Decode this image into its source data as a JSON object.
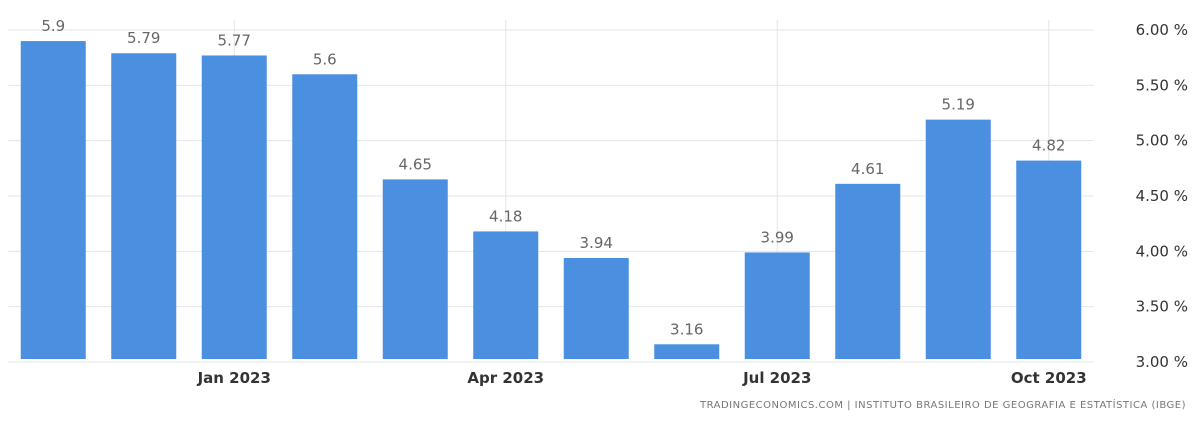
{
  "source_text": "TRADINGECONOMICS.COM | INSTITUTO BRASILEIRO DE GEOGRAFIA E ESTATÍSTICA (IBGE)",
  "colors": {
    "bar": "#4a8fe0",
    "grid": "#e2e6ea",
    "label": "#666666"
  },
  "chart_data": {
    "type": "bar",
    "categories": [
      "2022-11",
      "2022-12",
      "2023-01",
      "2023-02",
      "2023-03",
      "2023-04",
      "2023-05",
      "2023-06",
      "2023-07",
      "2023-08",
      "2023-09",
      "2023-10"
    ],
    "values": [
      5.9,
      5.79,
      5.77,
      5.6,
      4.65,
      4.18,
      3.94,
      3.16,
      3.99,
      4.61,
      5.19,
      4.82
    ],
    "data_labels": [
      "5.9",
      "5.79",
      "5.77",
      "5.6",
      "4.65",
      "4.18",
      "3.94",
      "3.16",
      "3.99",
      "4.61",
      "5.19",
      "4.82"
    ],
    "x_tick_labels": [
      {
        "index": 2,
        "label": "Jan 2023"
      },
      {
        "index": 5,
        "label": "Apr 2023"
      },
      {
        "index": 8,
        "label": "Jul 2023"
      },
      {
        "index": 11,
        "label": "Oct 2023"
      }
    ],
    "y_ticks": [
      3.0,
      3.5,
      4.0,
      4.5,
      5.0,
      5.5,
      6.0
    ],
    "y_tick_labels": [
      "3.00 %",
      "3.50 %",
      "4.00 %",
      "4.50 %",
      "5.00 %",
      "5.50 %",
      "6.00 %"
    ],
    "ylim": [
      3.0,
      6.0
    ],
    "title": "",
    "xlabel": "",
    "ylabel": "",
    "grid": true,
    "y_axis_side": "right",
    "legend": "none"
  }
}
